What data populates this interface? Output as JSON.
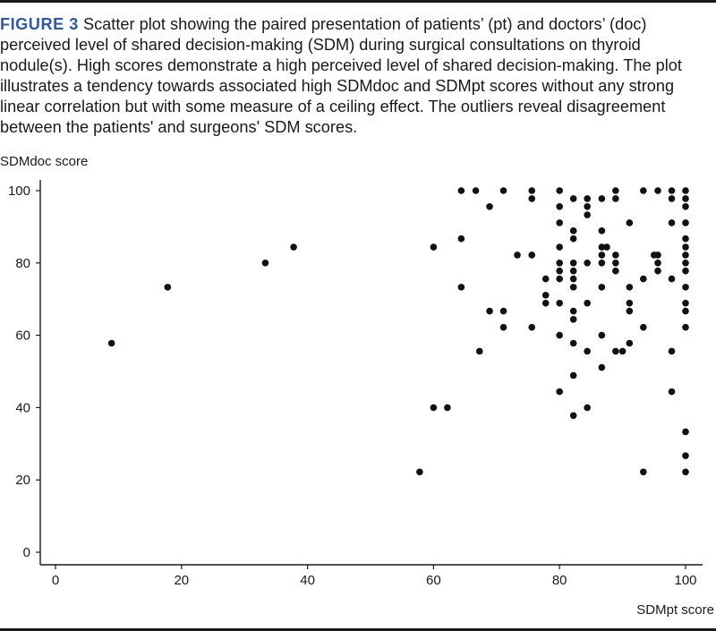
{
  "figure": {
    "label": "FIGURE 3",
    "caption": "Scatter plot showing the paired presentation of patients’ (pt) and doctors’ (doc) perceived level of shared decision-making (SDM) during surgical consultations on thyroid nodule(s). High scores demonstrate a high perceived level of shared decision-making. The plot illustrates a tendency towards associated high SDMdoc and SDMpt scores without any strong linear correlation but with some measure of a ceiling effect. The outliers reveal disagreement between the patients' and surgeons' SDM scores."
  },
  "chart_data": {
    "type": "scatter",
    "xlabel": "SDMpt score",
    "ylabel": "SDMdoc score",
    "xlim": [
      0,
      100
    ],
    "ylim": [
      0,
      100
    ],
    "xticks": [
      0,
      20,
      40,
      60,
      80,
      100
    ],
    "yticks": [
      0,
      20,
      40,
      60,
      80,
      100
    ],
    "grid": false,
    "point_color": "#111111",
    "points": [
      [
        8.9,
        57.8
      ],
      [
        17.8,
        73.3
      ],
      [
        33.3,
        80.0
      ],
      [
        37.8,
        84.4
      ],
      [
        57.8,
        22.2
      ],
      [
        60.0,
        40.0
      ],
      [
        62.2,
        40.0
      ],
      [
        60.0,
        84.4
      ],
      [
        64.4,
        100
      ],
      [
        64.4,
        86.7
      ],
      [
        64.4,
        73.3
      ],
      [
        66.7,
        100
      ],
      [
        68.9,
        95.6
      ],
      [
        68.9,
        66.7
      ],
      [
        67.3,
        55.6
      ],
      [
        71.1,
        100
      ],
      [
        71.1,
        66.7
      ],
      [
        71.1,
        62.2
      ],
      [
        73.3,
        82.2
      ],
      [
        75.6,
        100
      ],
      [
        75.6,
        97.8
      ],
      [
        75.6,
        82.2
      ],
      [
        75.6,
        62.2
      ],
      [
        77.8,
        75.6
      ],
      [
        77.8,
        71.1
      ],
      [
        77.8,
        68.9
      ],
      [
        80.0,
        100
      ],
      [
        80.0,
        95.6
      ],
      [
        80.0,
        91.1
      ],
      [
        80.0,
        84.4
      ],
      [
        80.0,
        80.0
      ],
      [
        80.0,
        77.8
      ],
      [
        80.0,
        75.6
      ],
      [
        80.0,
        68.9
      ],
      [
        80.0,
        60.0
      ],
      [
        80.0,
        44.4
      ],
      [
        82.2,
        97.8
      ],
      [
        82.2,
        88.9
      ],
      [
        82.2,
        86.7
      ],
      [
        82.2,
        80.0
      ],
      [
        82.2,
        77.8
      ],
      [
        82.2,
        75.6
      ],
      [
        82.2,
        73.3
      ],
      [
        82.2,
        66.7
      ],
      [
        82.2,
        64.4
      ],
      [
        82.2,
        57.8
      ],
      [
        82.2,
        48.9
      ],
      [
        82.2,
        37.8
      ],
      [
        84.4,
        97.8
      ],
      [
        84.4,
        95.6
      ],
      [
        84.4,
        93.3
      ],
      [
        84.4,
        80.0
      ],
      [
        84.4,
        68.9
      ],
      [
        84.4,
        55.6
      ],
      [
        84.4,
        40.0
      ],
      [
        86.7,
        97.8
      ],
      [
        86.7,
        88.9
      ],
      [
        86.7,
        84.4
      ],
      [
        86.7,
        82.2
      ],
      [
        86.7,
        80.0
      ],
      [
        86.7,
        73.3
      ],
      [
        86.7,
        60.0
      ],
      [
        86.7,
        51.1
      ],
      [
        87.5,
        84.4
      ],
      [
        88.9,
        100
      ],
      [
        88.9,
        97.8
      ],
      [
        88.9,
        82.2
      ],
      [
        88.9,
        80.0
      ],
      [
        88.9,
        77.8
      ],
      [
        88.9,
        55.6
      ],
      [
        90.0,
        55.6
      ],
      [
        91.1,
        91.1
      ],
      [
        91.1,
        73.3
      ],
      [
        91.1,
        68.9
      ],
      [
        91.1,
        66.7
      ],
      [
        91.1,
        57.8
      ],
      [
        93.3,
        100
      ],
      [
        93.3,
        75.6
      ],
      [
        93.3,
        62.2
      ],
      [
        93.3,
        22.2
      ],
      [
        95.0,
        82.2
      ],
      [
        95.6,
        100
      ],
      [
        95.6,
        82.2
      ],
      [
        95.6,
        80.0
      ],
      [
        95.6,
        77.8
      ],
      [
        97.8,
        100
      ],
      [
        97.8,
        97.8
      ],
      [
        97.8,
        91.1
      ],
      [
        97.8,
        75.6
      ],
      [
        97.8,
        55.6
      ],
      [
        97.8,
        44.4
      ],
      [
        100,
        100
      ],
      [
        100,
        97.8
      ],
      [
        100,
        95.6
      ],
      [
        100,
        91.1
      ],
      [
        100,
        86.7
      ],
      [
        100,
        84.4
      ],
      [
        100,
        82.2
      ],
      [
        100,
        80.0
      ],
      [
        100,
        77.8
      ],
      [
        100,
        73.3
      ],
      [
        100,
        68.9
      ],
      [
        100,
        66.7
      ],
      [
        100,
        62.2
      ],
      [
        100,
        33.3
      ],
      [
        100,
        26.7
      ],
      [
        100,
        22.2
      ]
    ]
  }
}
